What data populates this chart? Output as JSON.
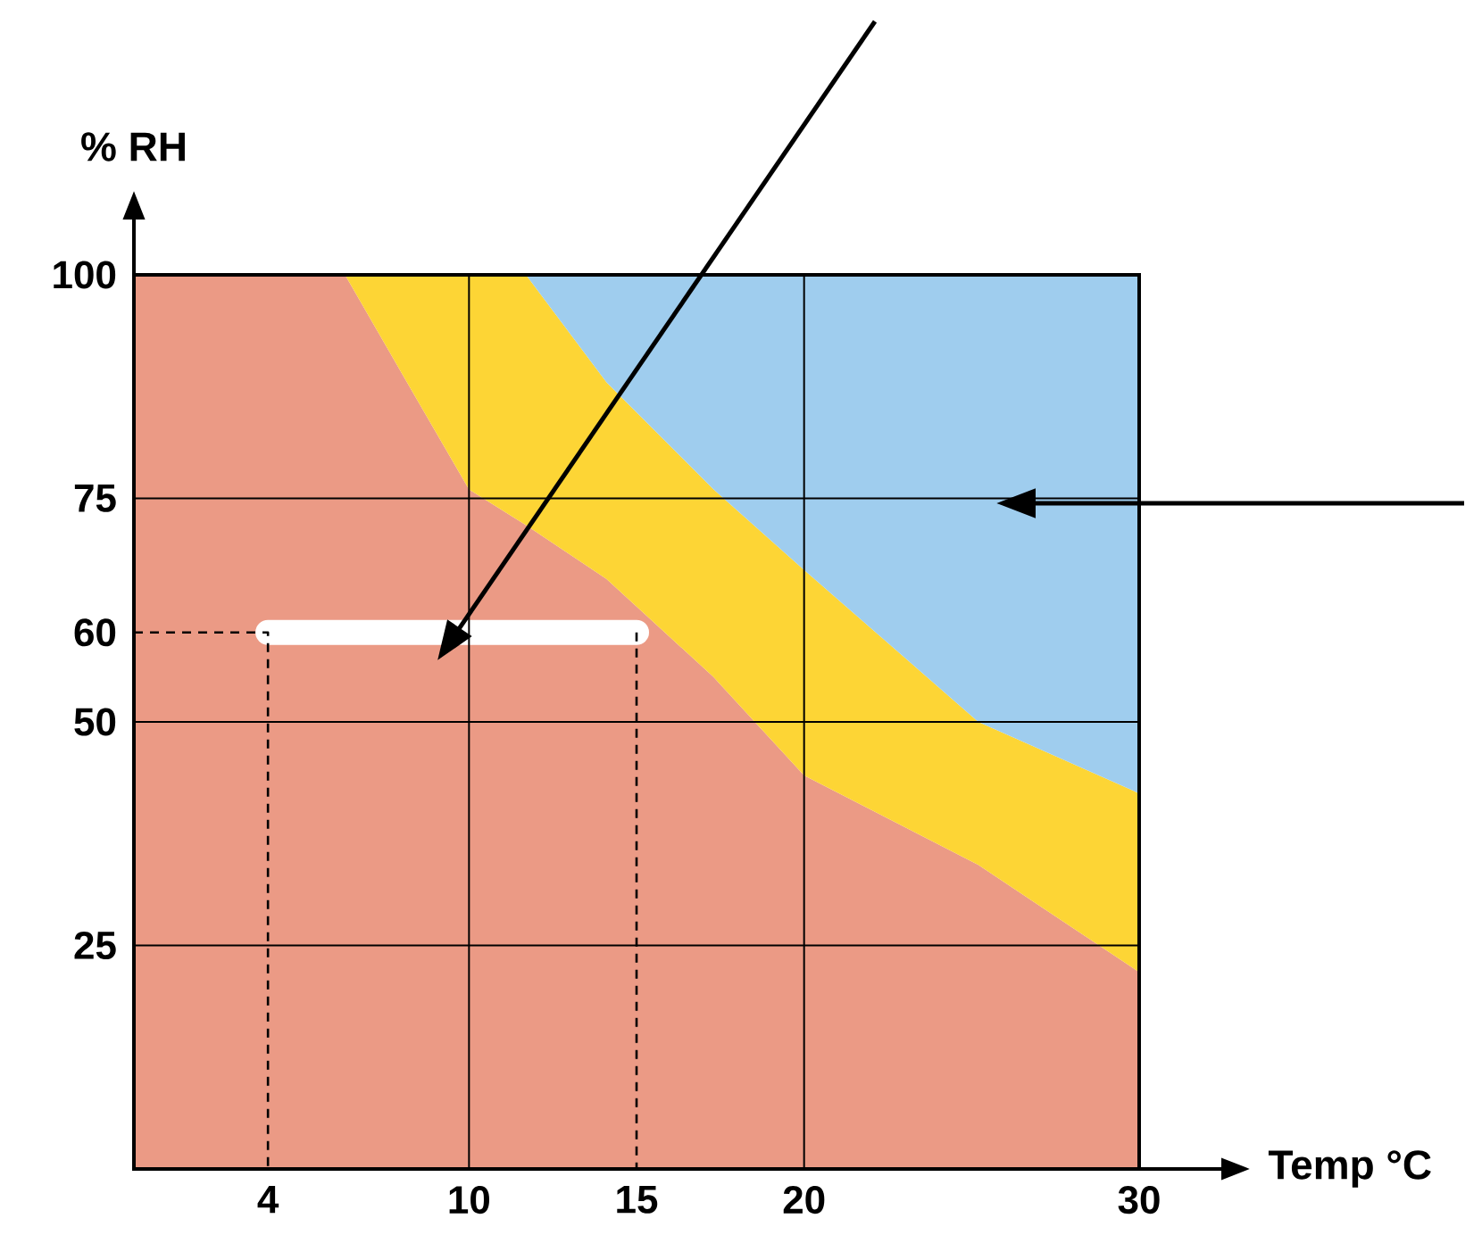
{
  "chart_data": {
    "type": "area",
    "xlabel": "Temp °C",
    "ylabel": "% RH",
    "xlim": [
      0,
      30
    ],
    "ylim": [
      0,
      100
    ],
    "xticks": [
      4,
      10,
      15,
      20,
      30
    ],
    "yticks": [
      25,
      50,
      60,
      75,
      100
    ],
    "grid": true,
    "stacked": true,
    "x": [
      0,
      6.3,
      8.3,
      10,
      11.7,
      14.1,
      17.3,
      20,
      25.2,
      30
    ],
    "series": [
      {
        "color": "#eb9a85",
        "values": [
          100,
          100,
          87,
          76,
          72,
          66,
          55,
          44,
          34,
          22
        ]
      },
      {
        "color": "#fdd535",
        "values": [
          0,
          0,
          13,
          24,
          28,
          22,
          21,
          23,
          16,
          20
        ]
      },
      {
        "color": "#9fcdee",
        "values": [
          0,
          0,
          0,
          0,
          0,
          12,
          24,
          33,
          50,
          58
        ]
      },
      {
        "type": "line",
        "color": "#ffffff",
        "x": [
          4,
          15
        ],
        "values": [
          60,
          60
        ]
      },
      {
        "type": "line",
        "color": "#000000",
        "line_style": "dashed",
        "x": [
          0,
          4,
          4
        ],
        "values": [
          60,
          60,
          0
        ]
      },
      {
        "type": "line",
        "color": "#000000",
        "line_style": "dashed",
        "x": [
          15,
          15
        ],
        "values": [
          60,
          0
        ]
      }
    ]
  }
}
